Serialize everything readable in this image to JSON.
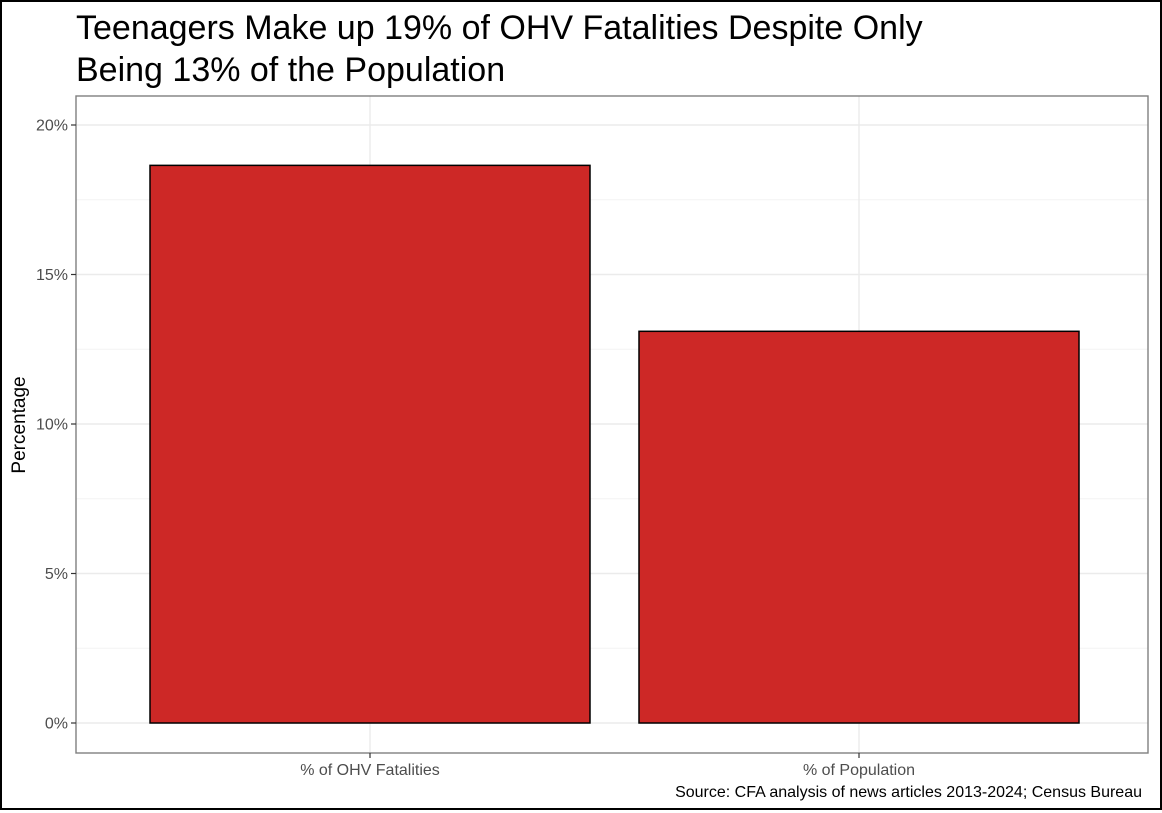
{
  "chart_data": {
    "type": "bar",
    "title_lines": [
      "Teenagers Make up 19% of OHV Fatalities Despite Only",
      "Being 13% of the Population"
    ],
    "categories": [
      "% of OHV Fatalities",
      "% of Population"
    ],
    "values": [
      18.65,
      13.1
    ],
    "ylabel": "Percentage",
    "xlabel": "",
    "ylim": [
      0,
      21
    ],
    "y_ticks": [
      0,
      5,
      10,
      15,
      20
    ],
    "y_tick_labels": [
      "0%",
      "5%",
      "10%",
      "15%",
      "20%"
    ],
    "caption": "Source: CFA analysis of news articles 2013-2024; Census Bureau",
    "grid": true,
    "legend": "none",
    "colors": {
      "bar_fill": "#CD2826",
      "bar_stroke": "#000000",
      "grid_major": "#EBEBEB",
      "grid_minor": "#F4F4F4",
      "panel_border": "#7F7F7F",
      "axis_text": "#4D4D4D",
      "title_text": "#000000"
    }
  }
}
